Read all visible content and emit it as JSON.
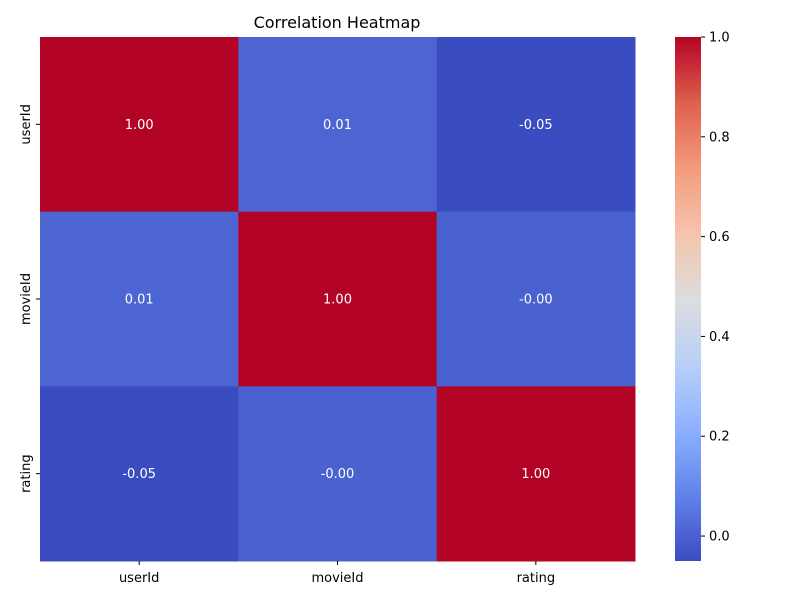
{
  "chart_data": {
    "type": "heatmap",
    "title": "Correlation Heatmap",
    "xlabel": "",
    "ylabel": "",
    "x_categories": [
      "userId",
      "movieId",
      "rating"
    ],
    "y_categories": [
      "userId",
      "movieId",
      "rating"
    ],
    "values": [
      [
        1.0,
        0.01,
        -0.05
      ],
      [
        0.01,
        1.0,
        -0.0
      ],
      [
        -0.05,
        -0.0,
        1.0
      ]
    ],
    "cell_labels": [
      [
        "1.00",
        "0.01",
        "-0.05"
      ],
      [
        "0.01",
        "1.00",
        "-0.00"
      ],
      [
        "-0.05",
        "-0.00",
        "1.00"
      ]
    ],
    "colormap": "coolwarm",
    "colorbar": {
      "range": [
        -0.05,
        1.0
      ],
      "ticks": [
        0.0,
        0.2,
        0.4,
        0.6,
        0.8,
        1.0
      ],
      "tick_labels": [
        "0.0",
        "0.2",
        "0.4",
        "0.6",
        "0.8",
        "1.0"
      ]
    },
    "annotation_color": "#ffffff"
  }
}
